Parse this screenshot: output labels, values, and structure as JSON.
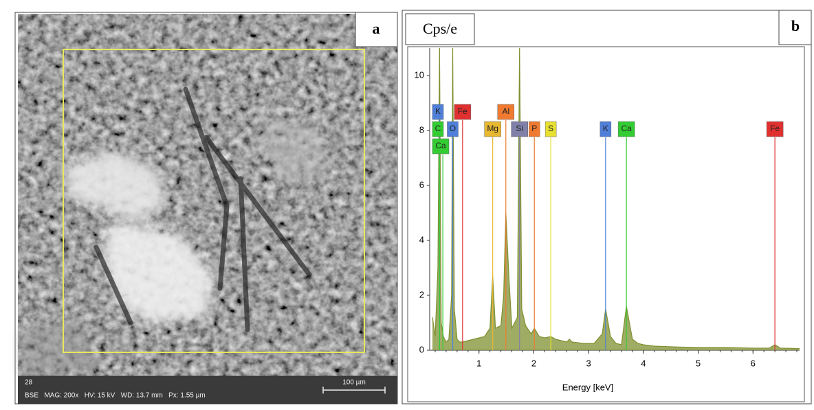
{
  "panel_a": {
    "label": "a",
    "info_number": "28",
    "info_line": "BSE   MAG: 200x   HV: 15 kV   WD: 13.7 mm   Px: 1.55 µm",
    "scale_bar": "100 µm"
  },
  "panel_b": {
    "label": "b",
    "y_unit": "Cps/e"
  },
  "chart_data": {
    "type": "area",
    "x_label": "Energy [keV]",
    "series": [
      {
        "color": "#7f9030",
        "x": [
          0.15,
          0.2,
          0.25,
          0.28,
          0.31,
          0.35,
          0.4,
          0.45,
          0.5,
          0.52,
          0.55,
          0.6,
          0.65,
          0.7,
          0.8,
          0.9,
          1.0,
          1.1,
          1.2,
          1.25,
          1.3,
          1.4,
          1.45,
          1.49,
          1.55,
          1.6,
          1.7,
          1.74,
          1.78,
          1.85,
          1.95,
          2.01,
          2.1,
          2.2,
          2.31,
          2.4,
          2.6,
          2.65,
          2.7,
          2.9,
          3.1,
          3.25,
          3.31,
          3.4,
          3.5,
          3.6,
          3.69,
          3.8,
          3.9,
          4.0,
          4.2,
          4.6,
          5.0,
          5.5,
          6.0,
          6.3,
          6.4,
          6.5,
          6.85
        ],
        "values": [
          1.2,
          0.5,
          3,
          11,
          1,
          0.5,
          0.3,
          0.4,
          2,
          11,
          1.5,
          0.4,
          0.3,
          0.3,
          0.35,
          0.4,
          0.45,
          0.5,
          0.8,
          2.7,
          0.8,
          0.9,
          2,
          5,
          2.5,
          0.8,
          1.2,
          11,
          1.5,
          0.9,
          0.6,
          0.8,
          0.5,
          0.45,
          0.5,
          0.4,
          0.3,
          0.4,
          0.3,
          0.25,
          0.25,
          0.6,
          1.5,
          0.5,
          0.25,
          0.2,
          1.6,
          0.4,
          0.25,
          0.2,
          0.15,
          0.12,
          0.1,
          0.1,
          0.08,
          0.08,
          0.2,
          0.08,
          0.06
        ]
      }
    ],
    "xlim": [
      0.1,
      6.85
    ],
    "xticks": [
      1,
      2,
      3,
      4,
      5,
      6
    ],
    "ylim": [
      0,
      11
    ],
    "yticks": [
      0,
      2,
      4,
      6,
      8,
      10
    ],
    "element_markers": [
      {
        "label": "K",
        "x": 0.28,
        "color": "#4f7fd8"
      },
      {
        "label": "C",
        "x": 0.28,
        "color": "#33cc33"
      },
      {
        "label": "Ca",
        "x": 0.34,
        "color": "#33cc33"
      },
      {
        "label": "O",
        "x": 0.52,
        "color": "#4f7fd8"
      },
      {
        "label": "Fe",
        "x": 0.7,
        "color": "#e03030"
      },
      {
        "label": "Mg",
        "x": 1.25,
        "color": "#e8b830"
      },
      {
        "label": "Al",
        "x": 1.49,
        "color": "#f07a30"
      },
      {
        "label": "Si",
        "x": 1.74,
        "color": "#8080a8"
      },
      {
        "label": "P",
        "x": 2.01,
        "color": "#f07a30"
      },
      {
        "label": "S",
        "x": 2.31,
        "color": "#e8e030"
      },
      {
        "label": "K",
        "x": 3.31,
        "color": "#4f7fd8"
      },
      {
        "label": "Ca",
        "x": 3.69,
        "color": "#33cc33"
      },
      {
        "label": "Fe",
        "x": 6.4,
        "color": "#e03030"
      }
    ]
  }
}
